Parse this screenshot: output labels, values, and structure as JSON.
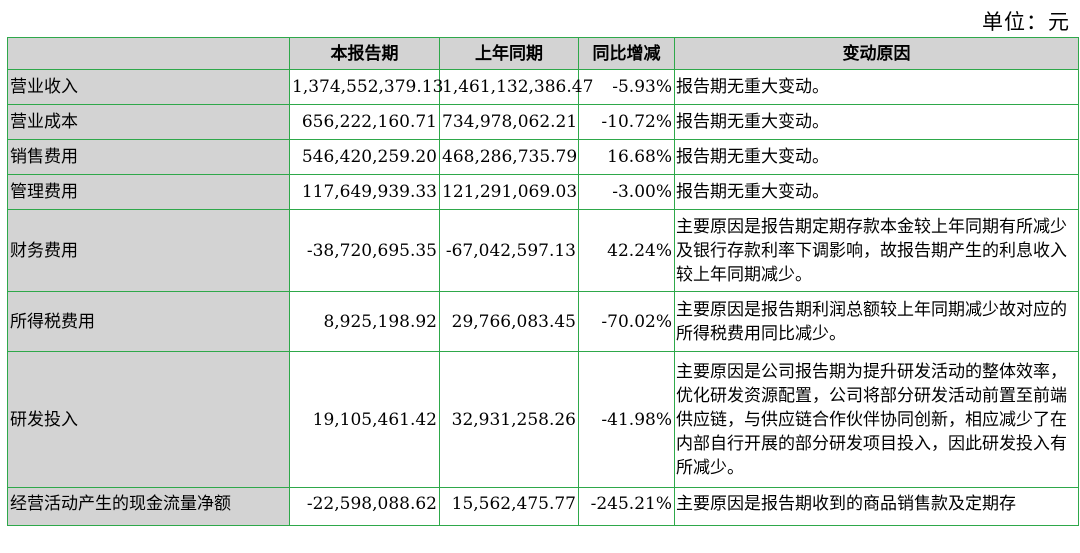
{
  "unit_label": "单位：元",
  "headers": [
    "",
    "本报告期",
    "上年同期",
    "同比增减",
    "变动原因"
  ],
  "rows": [
    {
      "item": "营业收入",
      "current": "1,374,552,379.13",
      "prior": "1,461,132,386.47",
      "change": "-5.93%",
      "reason": "报告期无重大变动。"
    },
    {
      "item": "营业成本",
      "current": "656,222,160.71",
      "prior": "734,978,062.21",
      "change": "-10.72%",
      "reason": "报告期无重大变动。"
    },
    {
      "item": "销售费用",
      "current": "546,420,259.20",
      "prior": "468,286,735.79",
      "change": "16.68%",
      "reason": "报告期无重大变动。"
    },
    {
      "item": "管理费用",
      "current": "117,649,939.33",
      "prior": "121,291,069.03",
      "change": "-3.00%",
      "reason": "报告期无重大变动。"
    },
    {
      "item": "财务费用",
      "current": "-38,720,695.35",
      "prior": "-67,042,597.13",
      "change": "42.24%",
      "reason": "主要原因是报告期定期存款本金较上年同期有所减少及银行存款利率下调影响，故报告期产生的利息收入较上年同期减少。"
    },
    {
      "item": "所得税费用",
      "current": "8,925,198.92",
      "prior": "29,766,083.45",
      "change": "-70.02%",
      "reason": "主要原因是报告期利润总额较上年同期减少故对应的所得税费用同比减少。"
    },
    {
      "item": "研发投入",
      "current": "19,105,461.42",
      "prior": "32,931,258.26",
      "change": "-41.98%",
      "reason": "主要原因是公司报告期为提升研发活动的整体效率，优化研发资源配置，公司将部分研发活动前置至前端供应链，与供应链合作伙伴协同创新，相应减少了在内部自行开展的部分研发项目投入，因此研发投入有所减少。"
    },
    {
      "item": "经营活动产生的现金流量净额",
      "current": "-22,598,088.62",
      "prior": "15,562,475.77",
      "change": "-245.21%",
      "reason": "主要原因是报告期收到的商品销售款及定期存"
    }
  ]
}
